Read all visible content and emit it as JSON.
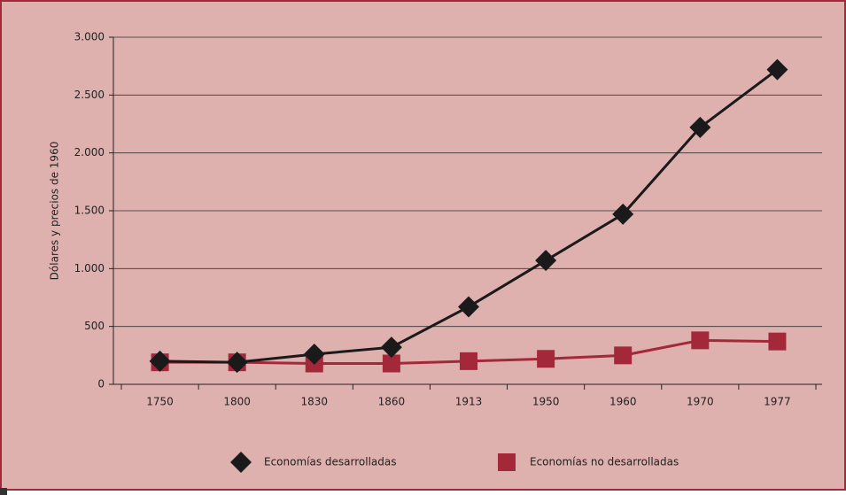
{
  "chart_data": {
    "type": "line",
    "y_label": "Dólares y precios de 1960",
    "categories": [
      "1750",
      "1800",
      "1830",
      "1860",
      "1913",
      "1950",
      "1960",
      "1970",
      "1977"
    ],
    "series": [
      {
        "name": "Economías desarrolladas",
        "color": "#1a1a1a",
        "marker": "diamond",
        "values": [
          200,
          190,
          260,
          320,
          670,
          1070,
          1470,
          2220,
          2720
        ]
      },
      {
        "name": "Economías no desarrolladas",
        "color": "#a3283a",
        "marker": "square",
        "values": [
          190,
          190,
          180,
          180,
          200,
          220,
          250,
          380,
          370
        ]
      }
    ],
    "ylim": [
      0,
      3000
    ],
    "yticks": [
      0,
      500,
      {
        "value": 1000,
        "label": "1.000"
      },
      {
        "value": 1500,
        "label": "1.500"
      },
      {
        "value": 2000,
        "label": "2.000"
      },
      {
        "value": 2500,
        "label": "2.500"
      },
      {
        "value": 3000,
        "label": "3.000"
      }
    ],
    "grid": true,
    "legend": "bottom"
  }
}
